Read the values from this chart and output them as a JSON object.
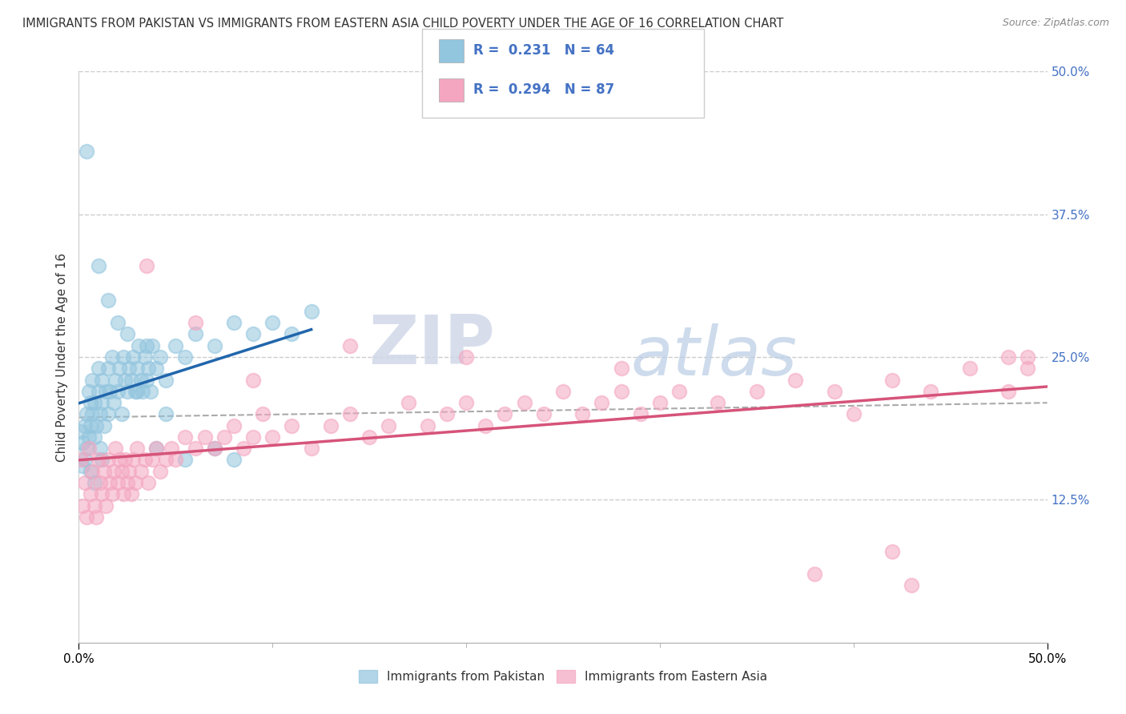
{
  "title": "IMMIGRANTS FROM PAKISTAN VS IMMIGRANTS FROM EASTERN ASIA CHILD POVERTY UNDER THE AGE OF 16 CORRELATION CHART",
  "source": "Source: ZipAtlas.com",
  "ylabel": "Child Poverty Under the Age of 16",
  "x_min": 0.0,
  "x_max": 0.5,
  "y_min": 0.0,
  "y_max": 0.5,
  "y_tick_vals_right": [
    0.5,
    0.375,
    0.25,
    0.125
  ],
  "pakistan_color": "#92c5de",
  "eastern_asia_color": "#f4a6c0",
  "pakistan_line_color": "#2166ac",
  "eastern_asia_line_color": "#d6537a",
  "watermark_zip": "ZIP",
  "watermark_atlas": "atlas",
  "background_color": "#ffffff",
  "grid_color": "#cccccc",
  "title_fontsize": 10.5,
  "axis_label_fontsize": 11,
  "tick_fontsize": 11,
  "pakistan_scatter": [
    [
      0.001,
      0.185
    ],
    [
      0.002,
      0.175
    ],
    [
      0.002,
      0.155
    ],
    [
      0.003,
      0.16
    ],
    [
      0.003,
      0.19
    ],
    [
      0.004,
      0.17
    ],
    [
      0.004,
      0.2
    ],
    [
      0.005,
      0.18
    ],
    [
      0.005,
      0.22
    ],
    [
      0.006,
      0.19
    ],
    [
      0.006,
      0.21
    ],
    [
      0.007,
      0.2
    ],
    [
      0.007,
      0.23
    ],
    [
      0.008,
      0.18
    ],
    [
      0.008,
      0.21
    ],
    [
      0.009,
      0.19
    ],
    [
      0.01,
      0.22
    ],
    [
      0.01,
      0.24
    ],
    [
      0.011,
      0.2
    ],
    [
      0.011,
      0.17
    ],
    [
      0.012,
      0.21
    ],
    [
      0.012,
      0.23
    ],
    [
      0.013,
      0.19
    ],
    [
      0.014,
      0.22
    ],
    [
      0.015,
      0.24
    ],
    [
      0.015,
      0.2
    ],
    [
      0.016,
      0.22
    ],
    [
      0.017,
      0.25
    ],
    [
      0.018,
      0.21
    ],
    [
      0.019,
      0.23
    ],
    [
      0.02,
      0.22
    ],
    [
      0.021,
      0.24
    ],
    [
      0.022,
      0.2
    ],
    [
      0.023,
      0.25
    ],
    [
      0.024,
      0.23
    ],
    [
      0.025,
      0.22
    ],
    [
      0.026,
      0.24
    ],
    [
      0.027,
      0.23
    ],
    [
      0.028,
      0.25
    ],
    [
      0.029,
      0.22
    ],
    [
      0.03,
      0.24
    ],
    [
      0.031,
      0.26
    ],
    [
      0.032,
      0.23
    ],
    [
      0.033,
      0.22
    ],
    [
      0.034,
      0.25
    ],
    [
      0.035,
      0.23
    ],
    [
      0.036,
      0.24
    ],
    [
      0.037,
      0.22
    ],
    [
      0.038,
      0.26
    ],
    [
      0.04,
      0.24
    ],
    [
      0.042,
      0.25
    ],
    [
      0.045,
      0.23
    ],
    [
      0.05,
      0.26
    ],
    [
      0.055,
      0.25
    ],
    [
      0.06,
      0.27
    ],
    [
      0.07,
      0.26
    ],
    [
      0.08,
      0.28
    ],
    [
      0.09,
      0.27
    ],
    [
      0.1,
      0.28
    ],
    [
      0.11,
      0.27
    ],
    [
      0.12,
      0.29
    ],
    [
      0.004,
      0.43
    ],
    [
      0.01,
      0.33
    ],
    [
      0.015,
      0.3
    ],
    [
      0.02,
      0.28
    ],
    [
      0.025,
      0.27
    ],
    [
      0.03,
      0.22
    ],
    [
      0.04,
      0.17
    ],
    [
      0.006,
      0.15
    ],
    [
      0.008,
      0.14
    ],
    [
      0.012,
      0.16
    ],
    [
      0.035,
      0.26
    ],
    [
      0.045,
      0.2
    ],
    [
      0.055,
      0.16
    ],
    [
      0.08,
      0.16
    ],
    [
      0.07,
      0.17
    ]
  ],
  "eastern_asia_scatter": [
    [
      0.001,
      0.16
    ],
    [
      0.002,
      0.12
    ],
    [
      0.003,
      0.14
    ],
    [
      0.004,
      0.11
    ],
    [
      0.005,
      0.17
    ],
    [
      0.006,
      0.13
    ],
    [
      0.007,
      0.15
    ],
    [
      0.008,
      0.12
    ],
    [
      0.009,
      0.11
    ],
    [
      0.01,
      0.16
    ],
    [
      0.011,
      0.14
    ],
    [
      0.012,
      0.13
    ],
    [
      0.013,
      0.15
    ],
    [
      0.014,
      0.12
    ],
    [
      0.015,
      0.16
    ],
    [
      0.016,
      0.14
    ],
    [
      0.017,
      0.13
    ],
    [
      0.018,
      0.15
    ],
    [
      0.019,
      0.17
    ],
    [
      0.02,
      0.14
    ],
    [
      0.021,
      0.16
    ],
    [
      0.022,
      0.15
    ],
    [
      0.023,
      0.13
    ],
    [
      0.024,
      0.16
    ],
    [
      0.025,
      0.14
    ],
    [
      0.026,
      0.15
    ],
    [
      0.027,
      0.13
    ],
    [
      0.028,
      0.16
    ],
    [
      0.029,
      0.14
    ],
    [
      0.03,
      0.17
    ],
    [
      0.032,
      0.15
    ],
    [
      0.034,
      0.16
    ],
    [
      0.036,
      0.14
    ],
    [
      0.038,
      0.16
    ],
    [
      0.04,
      0.17
    ],
    [
      0.042,
      0.15
    ],
    [
      0.045,
      0.16
    ],
    [
      0.048,
      0.17
    ],
    [
      0.05,
      0.16
    ],
    [
      0.055,
      0.18
    ],
    [
      0.06,
      0.17
    ],
    [
      0.065,
      0.18
    ],
    [
      0.07,
      0.17
    ],
    [
      0.075,
      0.18
    ],
    [
      0.08,
      0.19
    ],
    [
      0.085,
      0.17
    ],
    [
      0.09,
      0.18
    ],
    [
      0.095,
      0.2
    ],
    [
      0.1,
      0.18
    ],
    [
      0.11,
      0.19
    ],
    [
      0.12,
      0.17
    ],
    [
      0.13,
      0.19
    ],
    [
      0.14,
      0.2
    ],
    [
      0.15,
      0.18
    ],
    [
      0.16,
      0.19
    ],
    [
      0.17,
      0.21
    ],
    [
      0.18,
      0.19
    ],
    [
      0.19,
      0.2
    ],
    [
      0.2,
      0.21
    ],
    [
      0.21,
      0.19
    ],
    [
      0.22,
      0.2
    ],
    [
      0.23,
      0.21
    ],
    [
      0.24,
      0.2
    ],
    [
      0.25,
      0.22
    ],
    [
      0.26,
      0.2
    ],
    [
      0.27,
      0.21
    ],
    [
      0.28,
      0.22
    ],
    [
      0.29,
      0.2
    ],
    [
      0.3,
      0.21
    ],
    [
      0.31,
      0.22
    ],
    [
      0.33,
      0.21
    ],
    [
      0.35,
      0.22
    ],
    [
      0.37,
      0.23
    ],
    [
      0.39,
      0.22
    ],
    [
      0.4,
      0.2
    ],
    [
      0.42,
      0.23
    ],
    [
      0.44,
      0.22
    ],
    [
      0.46,
      0.24
    ],
    [
      0.48,
      0.22
    ],
    [
      0.49,
      0.25
    ],
    [
      0.035,
      0.33
    ],
    [
      0.06,
      0.28
    ],
    [
      0.09,
      0.23
    ],
    [
      0.14,
      0.26
    ],
    [
      0.2,
      0.25
    ],
    [
      0.28,
      0.24
    ],
    [
      0.48,
      0.25
    ],
    [
      0.49,
      0.24
    ],
    [
      0.38,
      0.06
    ],
    [
      0.42,
      0.08
    ],
    [
      0.43,
      0.05
    ]
  ]
}
